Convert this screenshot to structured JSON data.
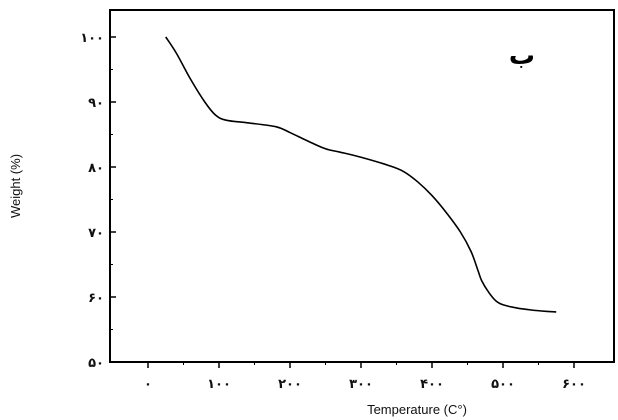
{
  "chart_data": {
    "type": "line",
    "panel_label": "ب",
    "xlabel": "Temperature (C°)",
    "ylabel": "Weight (%)",
    "xlim": [
      0,
      600
    ],
    "ylim": [
      50,
      104
    ],
    "x_ticks": [
      {
        "value": 0,
        "label": "۰"
      },
      {
        "value": 100,
        "label": "۱۰۰"
      },
      {
        "value": 200,
        "label": "۲۰۰"
      },
      {
        "value": 300,
        "label": "۳۰۰"
      },
      {
        "value": 400,
        "label": "۴۰۰"
      },
      {
        "value": 500,
        "label": "۵۰۰"
      },
      {
        "value": 600,
        "label": "۶۰۰"
      }
    ],
    "y_ticks": [
      {
        "value": 50,
        "label": "۵۰"
      },
      {
        "value": 60,
        "label": "۶۰"
      },
      {
        "value": 70,
        "label": "۷۰"
      },
      {
        "value": 80,
        "label": "۸۰"
      },
      {
        "value": 90,
        "label": "۹۰"
      },
      {
        "value": 100,
        "label": "۱۰۰"
      }
    ],
    "grid": false,
    "series": [
      {
        "color": "#000000",
        "x": [
          25,
          40,
          60,
          80,
          95,
          110,
          140,
          180,
          200,
          225,
          250,
          270,
          300,
          340,
          360,
          380,
          400,
          420,
          440,
          455,
          465,
          470,
          480,
          490,
          500,
          520,
          540,
          560,
          575
        ],
        "y": [
          100,
          97.5,
          93.5,
          90,
          88,
          87.2,
          86.8,
          86.2,
          85.3,
          84,
          82.8,
          82.3,
          81.5,
          80.2,
          79.3,
          77.7,
          75.6,
          73,
          70,
          67,
          64,
          62.5,
          60.7,
          59.4,
          58.8,
          58.3,
          58,
          57.8,
          57.7
        ]
      }
    ]
  }
}
